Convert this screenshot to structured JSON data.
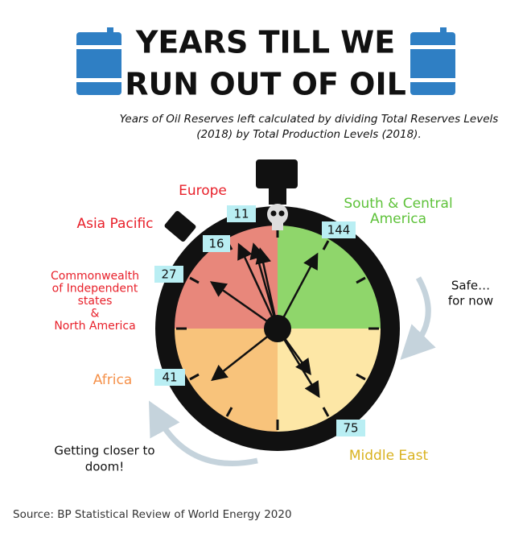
{
  "title": [
    "YEARS TILL WE",
    "RUN OUT OF OIL"
  ],
  "subtitle": [
    "Years of Oil Reserves left calculated by dividing Total Reserves Levels",
    "(2018) by Total Production Levels (2018)."
  ],
  "regions": [
    {
      "label": [
        "Europe"
      ],
      "value": 11
    },
    {
      "label": [
        "Asia Pacific"
      ],
      "value": 16
    },
    {
      "label": [
        "Commonwealth",
        "of Independent",
        "states",
        "&",
        "North America"
      ],
      "value": 27
    },
    {
      "label": [
        "Africa"
      ],
      "value": 41
    },
    {
      "label": [
        "Middle East"
      ],
      "value": 75
    },
    {
      "label": [
        "South & Central",
        "America"
      ],
      "value": 144
    }
  ],
  "annotations": {
    "safe": [
      "Safe…",
      "for now"
    ],
    "doom": [
      "Getting closer to",
      "doom!"
    ]
  },
  "source": "Source: BP Statistical Review of World Energy 2020"
}
